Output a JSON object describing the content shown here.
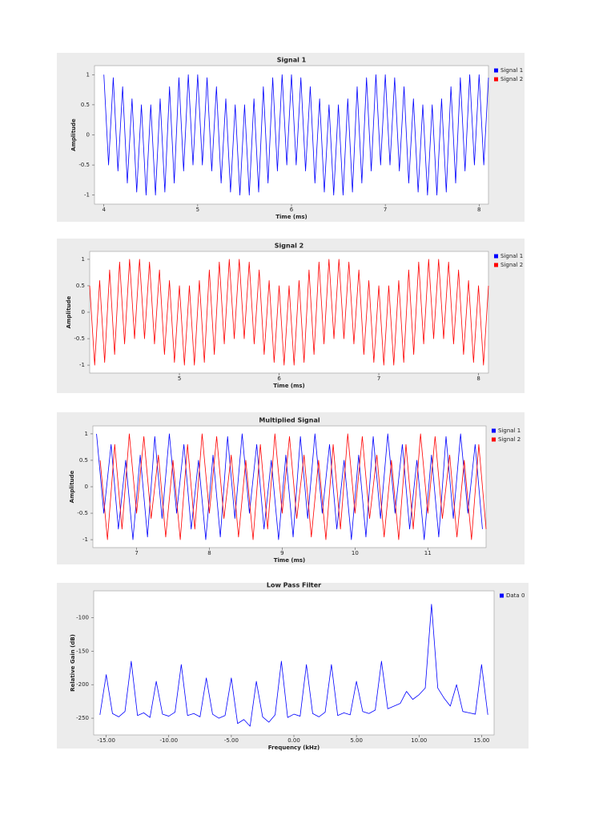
{
  "chart_data": [
    {
      "type": "line",
      "title": "Signal 1",
      "xlabel": "Time (ms)",
      "ylabel": "Amplitude",
      "xlim": [
        3.9,
        8.1
      ],
      "ylim": [
        -1.15,
        1.15
      ],
      "xticks": [
        4,
        5,
        6,
        7,
        8
      ],
      "yticks": [
        -1,
        -0.5,
        0,
        0.5,
        1
      ],
      "legend": [
        {
          "name": "Signal 1",
          "color": "#0000ff"
        },
        {
          "name": "Signal 2",
          "color": "#ff0000"
        }
      ],
      "x": [
        4.0,
        4.05,
        4.1,
        4.15,
        4.2,
        4.25,
        4.3,
        4.35,
        4.4,
        4.45,
        4.5,
        4.55,
        4.6,
        4.65,
        4.7,
        4.75,
        4.8,
        4.85,
        4.9,
        4.95,
        5.0,
        5.05,
        5.1,
        5.15,
        5.2,
        5.25,
        5.3,
        5.35,
        5.4,
        5.45,
        5.5,
        5.55,
        5.6,
        5.65,
        5.7,
        5.75,
        5.8,
        5.85,
        5.9,
        5.95,
        6.0,
        6.05,
        6.1,
        6.15,
        6.2,
        6.25,
        6.3,
        6.35,
        6.4,
        6.45,
        6.5,
        6.55,
        6.6,
        6.65,
        6.7,
        6.75,
        6.8,
        6.85,
        6.9,
        6.95,
        7.0,
        7.05,
        7.1,
        7.15,
        7.2,
        7.25,
        7.3,
        7.35,
        7.4,
        7.45,
        7.5,
        7.55,
        7.6,
        7.65,
        7.7,
        7.75,
        7.8,
        7.85,
        7.9,
        7.95,
        8.0,
        8.05,
        8.1
      ],
      "series": [
        {
          "name": "Signal 1",
          "color": "#0000ff",
          "values": [
            1,
            -0.5,
            0.95,
            -0.6,
            0.8,
            -0.8,
            0.6,
            -0.95,
            0.5,
            -1,
            0.5,
            -1,
            0.6,
            -0.95,
            0.8,
            -0.8,
            0.95,
            -0.6,
            1,
            -0.5,
            1,
            -0.5,
            0.95,
            -0.6,
            0.8,
            -0.8,
            0.6,
            -0.95,
            0.5,
            -1,
            0.5,
            -1,
            0.6,
            -0.95,
            0.8,
            -0.8,
            0.95,
            -0.6,
            1,
            -0.5,
            1,
            -0.5,
            0.95,
            -0.6,
            0.8,
            -0.8,
            0.6,
            -0.95,
            0.5,
            -1,
            0.5,
            -1,
            0.6,
            -0.95,
            0.8,
            -0.8,
            0.95,
            -0.6,
            1,
            -0.5,
            1,
            -0.5,
            0.95,
            -0.6,
            0.8,
            -0.8,
            0.6,
            -0.95,
            0.5,
            -1,
            0.5,
            -1,
            0.6,
            -0.95,
            0.8,
            -0.8,
            0.95,
            -0.6,
            1,
            -0.5,
            1,
            -0.5,
            0.95
          ]
        }
      ]
    },
    {
      "type": "line",
      "title": "Signal 2",
      "xlabel": "Time (ms)",
      "ylabel": "Amplitude",
      "xlim": [
        4.1,
        8.1
      ],
      "ylim": [
        -1.15,
        1.15
      ],
      "xticks": [
        5,
        6,
        7,
        8
      ],
      "yticks": [
        -1,
        -0.5,
        0,
        0.5,
        1
      ],
      "legend": [
        {
          "name": "Signal 1",
          "color": "#0000ff"
        },
        {
          "name": "Signal 2",
          "color": "#ff0000"
        }
      ],
      "x": [
        4.1,
        4.15,
        4.2,
        4.25,
        4.3,
        4.35,
        4.4,
        4.45,
        4.5,
        4.55,
        4.6,
        4.65,
        4.7,
        4.75,
        4.8,
        4.85,
        4.9,
        4.95,
        5.0,
        5.05,
        5.1,
        5.15,
        5.2,
        5.25,
        5.3,
        5.35,
        5.4,
        5.45,
        5.5,
        5.55,
        5.6,
        5.65,
        5.7,
        5.75,
        5.8,
        5.85,
        5.9,
        5.95,
        6.0,
        6.05,
        6.1,
        6.15,
        6.2,
        6.25,
        6.3,
        6.35,
        6.4,
        6.45,
        6.5,
        6.55,
        6.6,
        6.65,
        6.7,
        6.75,
        6.8,
        6.85,
        6.9,
        6.95,
        7.0,
        7.05,
        7.1,
        7.15,
        7.2,
        7.25,
        7.3,
        7.35,
        7.4,
        7.45,
        7.5,
        7.55,
        7.6,
        7.65,
        7.7,
        7.75,
        7.8,
        7.85,
        7.9,
        7.95,
        8.0,
        8.05,
        8.1
      ],
      "series": [
        {
          "name": "Signal 2",
          "color": "#ff0000",
          "values": [
            0.5,
            -1,
            0.6,
            -0.95,
            0.8,
            -0.8,
            0.95,
            -0.6,
            1,
            -0.5,
            1,
            -0.5,
            0.95,
            -0.6,
            0.8,
            -0.8,
            0.6,
            -0.95,
            0.5,
            -1,
            0.5,
            -1,
            0.6,
            -0.95,
            0.8,
            -0.8,
            0.95,
            -0.6,
            1,
            -0.5,
            1,
            -0.5,
            0.95,
            -0.6,
            0.8,
            -0.8,
            0.6,
            -0.95,
            0.5,
            -1,
            0.5,
            -1,
            0.6,
            -0.95,
            0.8,
            -0.8,
            0.95,
            -0.6,
            1,
            -0.5,
            1,
            -0.5,
            0.95,
            -0.6,
            0.8,
            -0.8,
            0.6,
            -0.95,
            0.5,
            -1,
            0.5,
            -1,
            0.6,
            -0.95,
            0.8,
            -0.8,
            0.95,
            -0.6,
            1,
            -0.5,
            1,
            -0.5,
            0.95,
            -0.6,
            0.8,
            -0.8,
            0.6,
            -0.95,
            0.5,
            -1,
            0.5
          ]
        }
      ]
    },
    {
      "type": "line",
      "title": "Multiplied Signal",
      "xlabel": "Time (ms)",
      "ylabel": "Amplitude",
      "xlim": [
        6.4,
        11.8
      ],
      "ylim": [
        -1.15,
        1.15
      ],
      "xticks": [
        7,
        8,
        9,
        10,
        11
      ],
      "yticks": [
        -1,
        -0.5,
        0,
        0.5,
        1
      ],
      "legend": [
        {
          "name": "Signal 1",
          "color": "#0000ff"
        },
        {
          "name": "Signal 2",
          "color": "#ff0000"
        }
      ],
      "series": [
        {
          "name": "Signal 1",
          "color": "#0000ff",
          "x": [
            6.45,
            6.55,
            6.65,
            6.75,
            6.85,
            6.95,
            7.05,
            7.15,
            7.25,
            7.35,
            7.45,
            7.55,
            7.65,
            7.75,
            7.85,
            7.95,
            8.05,
            8.15,
            8.25,
            8.35,
            8.45,
            8.55,
            8.65,
            8.75,
            8.85,
            8.95,
            9.05,
            9.15,
            9.25,
            9.35,
            9.45,
            9.55,
            9.65,
            9.75,
            9.85,
            9.95,
            10.05,
            10.15,
            10.25,
            10.35,
            10.45,
            10.55,
            10.65,
            10.75,
            10.85,
            10.95,
            11.05,
            11.15,
            11.25,
            11.35,
            11.45,
            11.55,
            11.65,
            11.75
          ],
          "values": [
            1,
            -0.5,
            0.8,
            -0.8,
            0.5,
            -1,
            0.6,
            -0.95,
            0.95,
            -0.6,
            1,
            -0.5,
            0.8,
            -0.8,
            0.5,
            -1,
            0.6,
            -0.95,
            0.95,
            -0.6,
            1,
            -0.5,
            0.8,
            -0.8,
            0.5,
            -1,
            0.6,
            -0.95,
            0.95,
            -0.6,
            1,
            -0.5,
            0.8,
            -0.8,
            0.5,
            -1,
            0.6,
            -0.95,
            0.95,
            -0.6,
            1,
            -0.5,
            0.8,
            -0.8,
            0.5,
            -1,
            0.6,
            -0.95,
            0.95,
            -0.6,
            1,
            -0.5,
            0.8,
            -0.8
          ]
        },
        {
          "name": "Signal 2",
          "color": "#ff0000",
          "x": [
            6.5,
            6.6,
            6.7,
            6.8,
            6.9,
            7.0,
            7.1,
            7.2,
            7.3,
            7.4,
            7.5,
            7.6,
            7.7,
            7.8,
            7.9,
            8.0,
            8.1,
            8.2,
            8.3,
            8.4,
            8.5,
            8.6,
            8.7,
            8.8,
            8.9,
            9.0,
            9.1,
            9.2,
            9.3,
            9.4,
            9.5,
            9.6,
            9.7,
            9.8,
            9.9,
            10.0,
            10.1,
            10.2,
            10.3,
            10.4,
            10.5,
            10.6,
            10.7,
            10.8,
            10.9,
            11.0,
            11.1,
            11.2,
            11.3,
            11.4,
            11.5,
            11.6,
            11.7,
            11.8
          ],
          "values": [
            0.5,
            -1,
            0.8,
            -0.8,
            1,
            -0.5,
            0.95,
            -0.6,
            0.6,
            -0.95,
            0.5,
            -1,
            0.8,
            -0.8,
            1,
            -0.5,
            0.95,
            -0.6,
            0.6,
            -0.95,
            0.5,
            -1,
            0.8,
            -0.8,
            1,
            -0.5,
            0.95,
            -0.6,
            0.6,
            -0.95,
            0.5,
            -1,
            0.8,
            -0.8,
            1,
            -0.5,
            0.95,
            -0.6,
            0.6,
            -0.95,
            0.5,
            -1,
            0.8,
            -0.8,
            1,
            -0.5,
            0.95,
            -0.6,
            0.6,
            -0.95,
            0.5,
            -1,
            0.8,
            -0.8
          ]
        }
      ]
    },
    {
      "type": "line",
      "title": "Low Pass Filter",
      "xlabel": "Frequency (kHz)",
      "ylabel": "Relative Gain (dB)",
      "xlim": [
        -16,
        16
      ],
      "ylim": [
        -275,
        -60
      ],
      "xticks": [
        {
          "value": -15,
          "label": "-15.00"
        },
        {
          "value": -10,
          "label": "-10.00"
        },
        {
          "value": -5,
          "label": "-5.00"
        },
        {
          "value": 0,
          "label": "0.00"
        },
        {
          "value": 5,
          "label": "5.00"
        },
        {
          "value": 10,
          "label": "10.00"
        },
        {
          "value": 15,
          "label": "15.00"
        }
      ],
      "yticks": [
        -250,
        -200,
        -150,
        -100
      ],
      "legend": [
        {
          "name": "Data 0",
          "color": "#0000ff"
        }
      ],
      "x": [
        -15.5,
        -15,
        -14.5,
        -14,
        -13.5,
        -13,
        -12.5,
        -12,
        -11.5,
        -11,
        -10.5,
        -10,
        -9.5,
        -9,
        -8.5,
        -8,
        -7.5,
        -7,
        -6.5,
        -6,
        -5.5,
        -5,
        -4.5,
        -4,
        -3.5,
        -3,
        -2.5,
        -2,
        -1.5,
        -1,
        -0.5,
        0,
        0.5,
        1,
        1.5,
        2,
        2.5,
        3,
        3.5,
        4,
        4.5,
        5,
        5.5,
        6,
        6.5,
        7,
        7.5,
        8,
        8.5,
        9,
        9.5,
        10,
        10.5,
        11,
        11.5,
        12,
        12.5,
        13,
        13.5,
        14,
        14.5,
        15,
        15.5
      ],
      "series": [
        {
          "name": "Data 0",
          "color": "#0000ff",
          "values": [
            -245,
            -185,
            -243,
            -248,
            -240,
            -165,
            -246,
            -242,
            -249,
            -195,
            -244,
            -247,
            -241,
            -170,
            -246,
            -243,
            -248,
            -190,
            -244,
            -250,
            -246,
            -190,
            -258,
            -252,
            -262,
            -195,
            -248,
            -256,
            -245,
            -165,
            -249,
            -244,
            -247,
            -170,
            -243,
            -248,
            -241,
            -170,
            -246,
            -242,
            -245,
            -195,
            -240,
            -243,
            -238,
            -165,
            -236,
            -232,
            -228,
            -210,
            -222,
            -215,
            -205,
            -80,
            -205,
            -220,
            -232,
            -200,
            -240,
            -242,
            -244,
            -170,
            -245
          ]
        }
      ]
    }
  ]
}
